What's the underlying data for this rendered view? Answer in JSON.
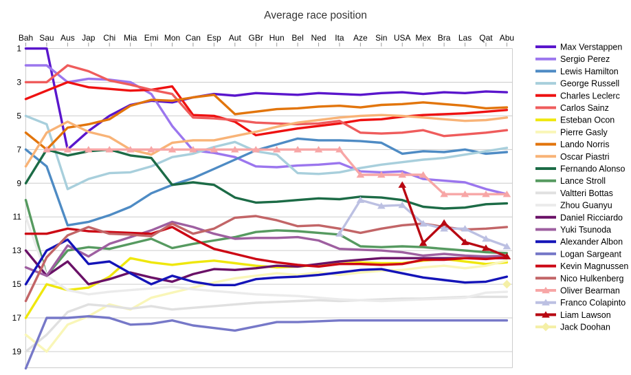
{
  "title": "Average race position",
  "legend": {
    "position": "right"
  },
  "chart_data": {
    "type": "line",
    "title": "Average race position",
    "x_categories": [
      "Bah",
      "Sau",
      "Aus",
      "Jap",
      "Chi",
      "Mia",
      "Emi",
      "Mon",
      "Can",
      "Esp",
      "Aut",
      "GBr",
      "Hun",
      "Bel",
      "Ned",
      "Ita",
      "Aze",
      "Sin",
      "USA",
      "Mex",
      "Bra",
      "Las",
      "Qat",
      "Abu"
    ],
    "y_axis": {
      "tick_labels": [
        1,
        3,
        5,
        7,
        9,
        11,
        13,
        15,
        17,
        19
      ],
      "min": 1,
      "max": 20,
      "inverted": true,
      "grid": true
    },
    "series": [
      {
        "name": "Max Verstappen",
        "color": "#5A16CC",
        "marker": "none",
        "values": [
          1,
          1,
          7,
          5.9,
          5,
          4.35,
          4.1,
          4.2,
          3.9,
          3.7,
          3.8,
          3.65,
          3.7,
          3.75,
          3.65,
          3.7,
          3.75,
          3.65,
          3.6,
          3.7,
          3.6,
          3.65,
          3.55,
          3.6
        ]
      },
      {
        "name": "Sergio Perez",
        "color": "#9B76EE",
        "marker": "none",
        "values": [
          2,
          2,
          3,
          2.8,
          2.85,
          3,
          3.7,
          5.6,
          7.05,
          7.2,
          7.45,
          8,
          8.05,
          7.95,
          7.9,
          7.8,
          8.3,
          8.35,
          8.3,
          8.75,
          8.85,
          8.95,
          9.35,
          9.65
        ]
      },
      {
        "name": "Lewis Hamilton",
        "color": "#4E8BC4",
        "marker": "none",
        "values": [
          7,
          8,
          11.5,
          11.3,
          10.9,
          10.4,
          9.6,
          9.1,
          8.7,
          8.15,
          7.6,
          7.05,
          6.7,
          6.35,
          6.45,
          6.45,
          6.5,
          6.6,
          7.25,
          7.1,
          7.15,
          7,
          7.25,
          7.15
        ]
      },
      {
        "name": "George Russell",
        "color": "#A8CFDC",
        "marker": "none",
        "values": [
          5,
          5.5,
          9.35,
          8.75,
          8.4,
          8.35,
          8,
          7.45,
          7.25,
          6.85,
          6.55,
          7.1,
          7.3,
          8.4,
          8.45,
          8.35,
          8.1,
          7.9,
          7.75,
          7.6,
          7.5,
          7.3,
          7.1,
          6.9
        ]
      },
      {
        "name": "Charles Leclerc",
        "color": "#EE1111",
        "marker": "none",
        "values": [
          4,
          3.5,
          3,
          3.3,
          3.4,
          3.5,
          3.45,
          3.25,
          4.95,
          5,
          5.35,
          6.15,
          5.95,
          5.75,
          5.6,
          5.45,
          5.25,
          5.2,
          5.05,
          4.95,
          4.9,
          4.85,
          4.75,
          4.65
        ]
      },
      {
        "name": "Carlos Sainz",
        "color": "#EF5C5C",
        "marker": "none",
        "values": [
          3,
          3,
          2,
          2.35,
          2.9,
          3.15,
          3.45,
          3.7,
          5.1,
          5.15,
          5.25,
          5.4,
          5.45,
          5.5,
          5.45,
          5.3,
          6,
          6.05,
          6,
          5.85,
          6.2,
          6.1,
          6,
          5.85
        ]
      },
      {
        "name": "Esteban Ocon",
        "color": "#EFE70D",
        "marker": "none",
        "values": [
          17,
          15,
          15.35,
          15.2,
          14.55,
          13.45,
          13.7,
          13.85,
          13.7,
          13.6,
          13.75,
          13.9,
          14,
          13.95,
          13.85,
          13.8,
          13.7,
          13.75,
          13.75,
          13.6,
          13.5,
          13.65,
          13.8,
          13.7
        ]
      },
      {
        "name": "Pierre Gasly",
        "color": "#F9F6B8",
        "marker": "none",
        "values": [
          18,
          19,
          17.4,
          16.9,
          16.2,
          16.5,
          15.8,
          15.5,
          15.2,
          14.9,
          14.65,
          14.5,
          14.35,
          14.45,
          14.3,
          14.45,
          14.3,
          14.2,
          14.15,
          14,
          13.9,
          14.05,
          13.9,
          13.6
        ]
      },
      {
        "name": "Lando Norris",
        "color": "#E2750C",
        "marker": "none",
        "values": [
          6,
          7,
          5.7,
          5.5,
          5.2,
          4.4,
          4.05,
          4.1,
          3.9,
          3.75,
          4.9,
          4.75,
          4.6,
          4.55,
          4.45,
          4.4,
          4.5,
          4.35,
          4.3,
          4.2,
          4.3,
          4.4,
          4.55,
          4.5
        ]
      },
      {
        "name": "Oscar Piastri",
        "color": "#F8B377",
        "marker": "none",
        "values": [
          8,
          6,
          5.35,
          5.95,
          6.25,
          7,
          7.3,
          6.6,
          6.45,
          6.45,
          6.2,
          5.95,
          5.65,
          5.4,
          5.25,
          5.1,
          5,
          4.95,
          5,
          5.1,
          5.2,
          5.3,
          5.25,
          5.1
        ]
      },
      {
        "name": "Fernando Alonso",
        "color": "#1C6B46",
        "marker": "none",
        "values": [
          9,
          7,
          7.35,
          7.1,
          7,
          7.35,
          7.5,
          9.1,
          8.95,
          9.1,
          9.85,
          10.15,
          10.1,
          10,
          9.9,
          9.95,
          9.8,
          9.85,
          10,
          10.4,
          10.5,
          10.45,
          10.25,
          10.2
        ]
      },
      {
        "name": "Lance Stroll",
        "color": "#569A60",
        "marker": "none",
        "values": [
          10,
          14.5,
          13,
          12.8,
          12.9,
          12.6,
          12.3,
          12.85,
          12.6,
          12.4,
          12.2,
          11.9,
          11.8,
          11.85,
          11.95,
          12.05,
          12.75,
          12.8,
          12.75,
          12.8,
          12.9,
          13,
          13.1,
          13.15
        ]
      },
      {
        "name": "Valtteri Bottas",
        "color": "#E0E0E0",
        "marker": "none",
        "values": [
          19,
          18,
          16.65,
          16.2,
          16.3,
          16.45,
          16.3,
          16.5,
          16.4,
          16.3,
          16.2,
          16.1,
          16.05,
          16,
          15.95,
          16,
          15.95,
          15.9,
          15.85,
          15.85,
          15.8,
          15.75,
          15.75,
          15.75
        ]
      },
      {
        "name": "Zhou Guanyu",
        "color": "#EBEBEB",
        "marker": "none",
        "values": [
          11,
          14.5,
          15.35,
          15.6,
          15.45,
          15.35,
          15.25,
          15.15,
          15.3,
          15.4,
          15.5,
          15.6,
          15.65,
          15.7,
          15.8,
          15.9,
          15.95,
          16,
          15.95,
          15.9,
          15.85,
          15.8,
          15.5,
          15.45
        ]
      },
      {
        "name": "Daniel Ricciardo",
        "color": "#6A1167",
        "marker": "none",
        "values": [
          13,
          14.5,
          13.65,
          15,
          14.7,
          14.3,
          14.6,
          14.85,
          14.4,
          14.1,
          14.15,
          14.05,
          13.9,
          13.95,
          13.8,
          13.65,
          13.55,
          13.45,
          13.45,
          13.45,
          13.45,
          13.45,
          13.45,
          13.45
        ]
      },
      {
        "name": "Yuki Tsunoda",
        "color": "#9E5FA0",
        "marker": "none",
        "values": [
          14,
          14.5,
          12.7,
          13.35,
          12.6,
          12.2,
          11.8,
          11.3,
          11.6,
          12,
          12.3,
          12.25,
          12.25,
          12.2,
          12.4,
          12.9,
          12.95,
          13,
          13.1,
          13.3,
          13.2,
          13.3,
          13.35,
          13.3
        ]
      },
      {
        "name": "Alexander Albon",
        "color": "#1414B8",
        "marker": "none",
        "values": [
          15,
          13,
          12.35,
          13.8,
          13.65,
          14.35,
          15,
          14.5,
          14.85,
          15.05,
          15.05,
          14.7,
          14.6,
          14.55,
          14.45,
          14.3,
          14.15,
          14.1,
          14.35,
          14.6,
          14.75,
          14.9,
          14.85,
          14.55
        ]
      },
      {
        "name": "Logan Sargeant",
        "color": "#7678C8",
        "marker": "none",
        "values": [
          20,
          17,
          17,
          16.9,
          17,
          17.4,
          17.35,
          17.15,
          17.45,
          17.6,
          17.75,
          17.5,
          17.25,
          17.25,
          17.2,
          17.15,
          17.15,
          17.15,
          17.15,
          17.15,
          17.15,
          17.15,
          17.15,
          17.15
        ]
      },
      {
        "name": "Kevin Magnussen",
        "color": "#CC0714",
        "marker": "none",
        "values": [
          12,
          12,
          11.7,
          11.85,
          11.9,
          11.95,
          12,
          11.6,
          12.3,
          12.9,
          13.2,
          13.5,
          13.7,
          13.85,
          13.95,
          13.8,
          13.8,
          13.85,
          13.8,
          13.55,
          13.55,
          13.45,
          13.5,
          13.4
        ]
      },
      {
        "name": "Nico Hulkenberg",
        "color": "#C26567",
        "marker": "none",
        "values": [
          16,
          13.4,
          12.1,
          11.6,
          12,
          12.05,
          12.15,
          11.4,
          12,
          11.7,
          11.05,
          10.95,
          11.2,
          11.55,
          11.5,
          11.7,
          11.95,
          11.7,
          11.5,
          11.4,
          11.6,
          11.75,
          11.7,
          11.6
        ]
      },
      {
        "name": "Oliver Bearman",
        "color": "#F7A6A6",
        "marker": "triangle",
        "values": [
          null,
          7,
          7,
          7,
          7,
          7,
          7,
          7,
          7,
          7,
          7,
          7,
          7,
          7,
          7,
          7,
          8.5,
          8.5,
          8.5,
          8.5,
          9.65,
          9.65,
          9.65,
          9.65
        ]
      },
      {
        "name": "Franco Colapinto",
        "color": "#BCC0E2",
        "marker": "triangle",
        "values": [
          null,
          null,
          null,
          null,
          null,
          null,
          null,
          null,
          null,
          null,
          null,
          null,
          null,
          null,
          null,
          12,
          10,
          10.35,
          10.3,
          11.4,
          11.7,
          11.7,
          12.3,
          12.75
        ]
      },
      {
        "name": "Liam Lawson",
        "color": "#B80812",
        "marker": "triangle",
        "values": [
          null,
          null,
          null,
          null,
          null,
          null,
          null,
          null,
          null,
          null,
          null,
          null,
          null,
          null,
          null,
          null,
          null,
          null,
          9.1,
          12.55,
          11.35,
          12.5,
          12.85,
          13.35
        ]
      },
      {
        "name": "Jack Doohan",
        "color": "#F4EFA6",
        "marker": "diamond",
        "values": [
          null,
          null,
          null,
          null,
          null,
          null,
          null,
          null,
          null,
          null,
          null,
          null,
          null,
          null,
          null,
          null,
          null,
          null,
          null,
          null,
          null,
          null,
          null,
          15
        ]
      }
    ]
  }
}
